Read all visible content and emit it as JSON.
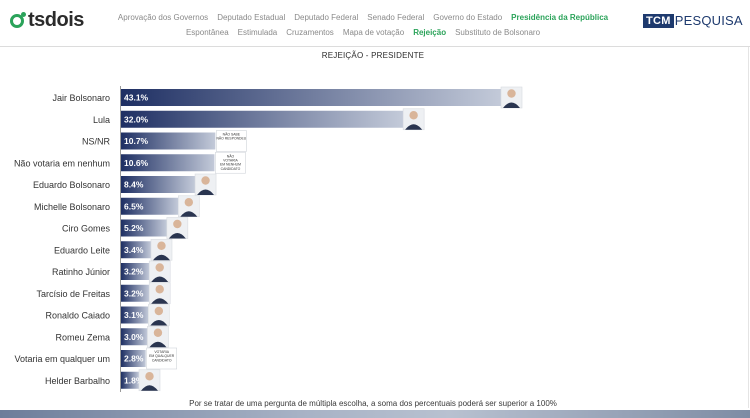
{
  "brand": {
    "left_logo": "tsdois",
    "right_logo_box": "TCM",
    "right_logo_text": "PESQUISA"
  },
  "nav": {
    "row1": [
      {
        "label": "Aprovação dos Governos",
        "active": false
      },
      {
        "label": "Deputado Estadual",
        "active": false
      },
      {
        "label": "Deputado Federal",
        "active": false
      },
      {
        "label": "Senado Federal",
        "active": false
      },
      {
        "label": "Governo do Estado",
        "active": false
      },
      {
        "label": "Presidência da República",
        "active": true
      }
    ],
    "row2": [
      {
        "label": "Espontânea",
        "active": false
      },
      {
        "label": "Estimulada",
        "active": false
      },
      {
        "label": "Cruzamentos",
        "active": false
      },
      {
        "label": "Mapa de votação",
        "active": false
      },
      {
        "label": "Rejeição",
        "active": true
      },
      {
        "label": "Substituto de Bolsonaro",
        "active": false
      }
    ]
  },
  "colors": {
    "bar_start": "#1e2f63",
    "bar_end": "#c3cad9",
    "accent": "#2ba35a",
    "brand_blue": "#1e3a6e"
  },
  "chart_data": {
    "type": "bar",
    "orientation": "horizontal",
    "title": "REJEIÇÃO - PRESIDENTE",
    "categories": [
      "Jair Bolsonaro",
      "Lula",
      "NS/NR",
      "Não votaria em nenhum",
      "Eduardo Bolsonaro",
      "Michelle Bolsonaro",
      "Ciro Gomes",
      "Eduardo Leite",
      "Ratinho Júnior",
      "Tarcísio de Freitas",
      "Ronaldo Caiado",
      "Romeu Zema",
      "Votaria em qualquer um",
      "Helder Barbalho"
    ],
    "values": [
      43.1,
      32.0,
      10.7,
      10.6,
      8.4,
      6.5,
      5.2,
      3.4,
      3.2,
      3.2,
      3.1,
      3.0,
      2.8,
      1.8
    ],
    "labels": [
      "43.1%",
      "32.0%",
      "10.7%",
      "10.6%",
      "8.4%",
      "6.5%",
      "5.2%",
      "3.4%",
      "3.2%",
      "3.2%",
      "3.1%",
      "3.0%",
      "2.8%",
      "1.8%"
    ],
    "markers": [
      "photo",
      "photo",
      "badge",
      "badge",
      "photo",
      "photo",
      "photo",
      "photo",
      "photo",
      "photo",
      "photo",
      "photo",
      "badge",
      "photo"
    ],
    "badges": {
      "2": [
        "NÃO SABE",
        "NÃO RESPONDEU"
      ],
      "3": [
        "NÃO",
        "VOTARIA",
        "EM NENHUM",
        "CANDIDATO"
      ],
      "12": [
        "VOTARIA",
        "EM QUALQUER",
        "CANDIDATO"
      ]
    },
    "xlim": [
      0,
      43.1
    ],
    "grid": false,
    "legend": "none"
  },
  "footnote": "Por se tratar de uma pergunta de múltipla escolha, a soma dos percentuais poderá ser superior a 100%"
}
